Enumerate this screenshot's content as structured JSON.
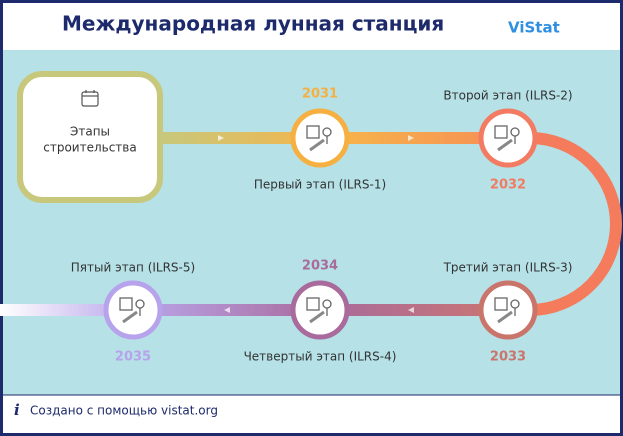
{
  "header": {
    "title": "Международная лунная станция",
    "logo": "ViStat"
  },
  "start": {
    "lines": [
      "Этапы",
      "строительства"
    ]
  },
  "stages": [
    {
      "year": "2031",
      "label": "Первый этап (ILRS-1)",
      "color": "#f6b042"
    },
    {
      "year": "2032",
      "label": "Второй этап (ILRS-2)",
      "color": "#f27b61"
    },
    {
      "year": "2033",
      "label": "Третий этап (ILRS-3)",
      "color": "#c9756b"
    },
    {
      "year": "2034",
      "label": "Четвертый этап (ILRS-4)",
      "color": "#a86b9b"
    },
    {
      "year": "2035",
      "label": "Пятый этап (ILRS-5)",
      "color": "#b7a3ec"
    }
  ],
  "footer": {
    "text": "Создано с помощью vistat.org"
  }
}
